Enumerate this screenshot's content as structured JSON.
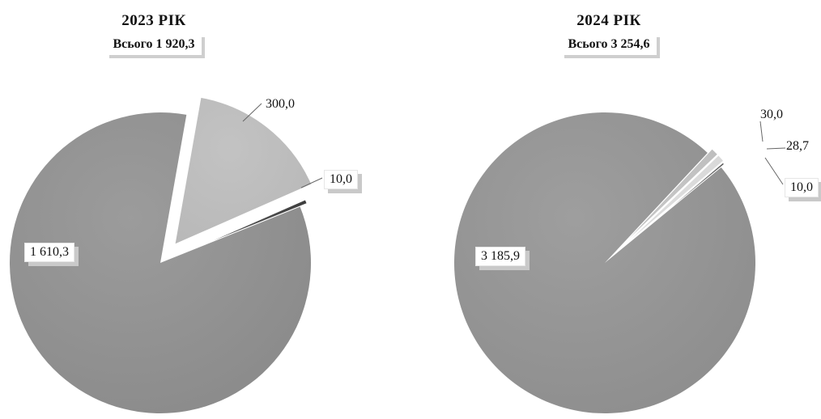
{
  "chart_data": [
    {
      "type": "pie",
      "title": "2023 РІК",
      "subtitle": "Всього 1 920,3",
      "values": [
        1610.3,
        300.0,
        10.0
      ],
      "labels": [
        "1 610,3",
        "300,0",
        "10,0"
      ],
      "colors": [
        "#8a8a8a",
        "#b8b8b8",
        "#3a3a3a"
      ]
    },
    {
      "type": "pie",
      "title": "2024 РІК",
      "subtitle": "Всього 3 254,6",
      "values": [
        3185.9,
        30.0,
        28.7,
        10.0
      ],
      "labels": [
        "3 185,9",
        "30,0",
        "28,7",
        "10,0"
      ],
      "colors": [
        "#8d8d8d",
        "#bdbdbd",
        "#d8d8d8",
        "#555555"
      ]
    }
  ]
}
